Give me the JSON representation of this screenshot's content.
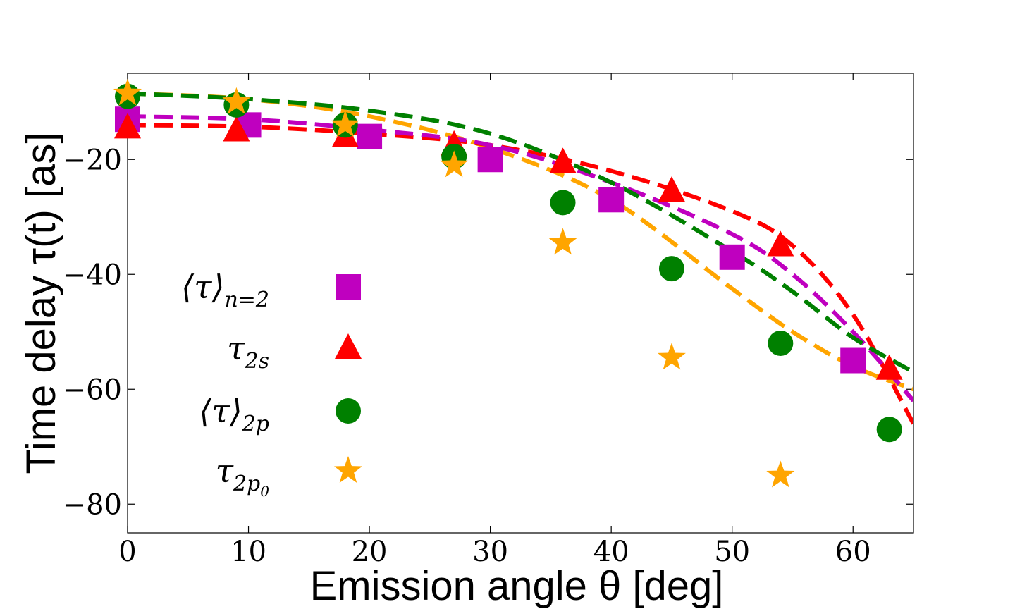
{
  "chart_data": {
    "type": "scatter",
    "title": "",
    "xlabel": "Emission angle θ [deg]",
    "ylabel": "Time delay τ(t) [as]",
    "xlim": [
      0,
      65
    ],
    "ylim": [
      -85,
      -5
    ],
    "xticks": [
      0,
      10,
      20,
      30,
      40,
      50,
      60
    ],
    "yticks": [
      -80,
      -60,
      -40,
      -20
    ],
    "xtick_labels": [
      "0",
      "10",
      "20",
      "30",
      "40",
      "50",
      "60"
    ],
    "ytick_labels": [
      "−80",
      "−60",
      "−40",
      "−20"
    ],
    "series": [
      {
        "name": "⟨τ⟩n=2",
        "legend_main": "⟨τ⟩",
        "legend_sub": "n=2",
        "color": "#BF00BF",
        "marker": "square",
        "points": [
          [
            0,
            -13
          ],
          [
            10,
            -14
          ],
          [
            20,
            -16
          ],
          [
            30,
            -20
          ],
          [
            40,
            -27
          ],
          [
            50,
            -37
          ],
          [
            60,
            -55
          ]
        ],
        "fit": [
          [
            0,
            -12.5
          ],
          [
            10,
            -13
          ],
          [
            20,
            -14.8
          ],
          [
            30,
            -17.5
          ],
          [
            40,
            -24
          ],
          [
            50,
            -33
          ],
          [
            55,
            -40
          ],
          [
            60,
            -50
          ],
          [
            65,
            -62
          ]
        ]
      },
      {
        "name": "τ2s",
        "legend_main": "τ",
        "legend_sub": "2s",
        "color": "#FF0000",
        "marker": "triangle",
        "points": [
          [
            0,
            -14.5
          ],
          [
            9,
            -15
          ],
          [
            18,
            -16
          ],
          [
            27,
            -17.5
          ],
          [
            36,
            -20.5
          ],
          [
            45,
            -25.5
          ],
          [
            54,
            -35
          ],
          [
            63,
            -56.5
          ]
        ],
        "fit": [
          [
            0,
            -14
          ],
          [
            10,
            -14.3
          ],
          [
            20,
            -15.5
          ],
          [
            30,
            -17.5
          ],
          [
            40,
            -22
          ],
          [
            50,
            -29
          ],
          [
            55,
            -35
          ],
          [
            60,
            -47
          ],
          [
            65,
            -66
          ]
        ]
      },
      {
        "name": "⟨τ⟩2p",
        "legend_main": "⟨τ⟩",
        "legend_sub": "2p",
        "color": "#008000",
        "marker": "circle",
        "points": [
          [
            0,
            -9
          ],
          [
            9,
            -10.5
          ],
          [
            18,
            -14
          ],
          [
            27,
            -19.5
          ],
          [
            36,
            -27.5
          ],
          [
            45,
            -39
          ],
          [
            54,
            -52
          ],
          [
            63,
            -67
          ]
        ],
        "fit": [
          [
            0,
            -8.5
          ],
          [
            10,
            -9.5
          ],
          [
            20,
            -11.5
          ],
          [
            30,
            -15.5
          ],
          [
            40,
            -24
          ],
          [
            50,
            -36
          ],
          [
            55,
            -43
          ],
          [
            60,
            -51
          ],
          [
            65,
            -57
          ]
        ]
      },
      {
        "name": "τ2p0",
        "legend_main": "τ",
        "legend_sub": "2p",
        "legend_subsub": "0",
        "color": "#FFA500",
        "marker": "star",
        "points": [
          [
            0,
            -8.5
          ],
          [
            9,
            -10
          ],
          [
            18,
            -14
          ],
          [
            27,
            -21
          ],
          [
            36,
            -34.5
          ],
          [
            45,
            -54.5
          ],
          [
            54,
            -75
          ]
        ],
        "fit": [
          [
            0,
            -8.5
          ],
          [
            10,
            -9.5
          ],
          [
            20,
            -12.5
          ],
          [
            30,
            -18
          ],
          [
            40,
            -27
          ],
          [
            50,
            -42.5
          ],
          [
            55,
            -50
          ],
          [
            60,
            -56
          ],
          [
            65,
            -60
          ]
        ]
      }
    ]
  }
}
